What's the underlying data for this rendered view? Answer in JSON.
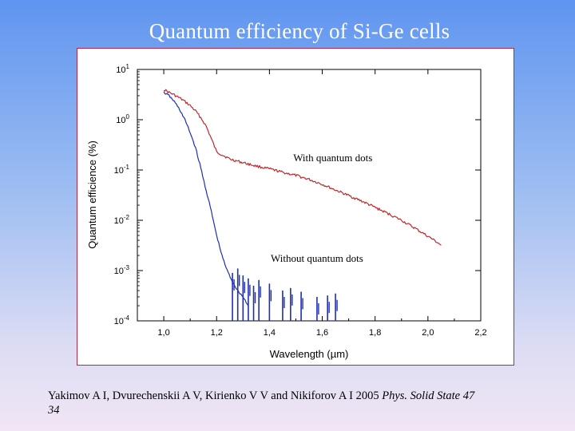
{
  "slide": {
    "title": "Quantum efficiency of Si-Ge cells",
    "citation_main": "Yakimov A I, Dvurechenskii A V, Kirienko V V and Nikiforov A I 2005 ",
    "citation_journal": "Phys. Solid State 47",
    "citation_page": "34"
  },
  "colors": {
    "with_dots": "#c0272d",
    "without_dots": "#1f2fb0",
    "frame_border": "#b22a44"
  },
  "chart_data": {
    "type": "line",
    "title": "",
    "xlabel": "Wavelength (µm)",
    "ylabel": "Quantum efficience (%)",
    "xlim": [
      0.9,
      2.2
    ],
    "ylim": [
      0.0001,
      10
    ],
    "yscale": "log",
    "grid": false,
    "xticks": [
      {
        "value": 1.0,
        "label": "1,0"
      },
      {
        "value": 1.2,
        "label": "1,2"
      },
      {
        "value": 1.4,
        "label": "1,4"
      },
      {
        "value": 1.6,
        "label": "1,6"
      },
      {
        "value": 1.8,
        "label": "1,8"
      },
      {
        "value": 2.0,
        "label": "2,0"
      },
      {
        "value": 2.2,
        "label": "2,2"
      }
    ],
    "yticks": [
      {
        "value": 10,
        "base": "10",
        "exp": "1"
      },
      {
        "value": 1,
        "base": "10",
        "exp": "0"
      },
      {
        "value": 0.1,
        "base": "10",
        "exp": "-1"
      },
      {
        "value": 0.01,
        "base": "10",
        "exp": "-2"
      },
      {
        "value": 0.001,
        "base": "10",
        "exp": "-3"
      },
      {
        "value": 0.0001,
        "base": "10",
        "exp": "-4"
      }
    ],
    "annotations": [
      {
        "text": "With quantum dots",
        "x": 1.64,
        "y": 0.15
      },
      {
        "text": "Without quantum dots",
        "x": 1.58,
        "y": 0.0015
      }
    ],
    "series": [
      {
        "key": "with_dots",
        "x": [
          1.0,
          1.02,
          1.04,
          1.06,
          1.08,
          1.1,
          1.12,
          1.14,
          1.16,
          1.18,
          1.2,
          1.25,
          1.3,
          1.35,
          1.4,
          1.45,
          1.5,
          1.55,
          1.6,
          1.65,
          1.7,
          1.75,
          1.8,
          1.85,
          1.9,
          1.95,
          2.0,
          2.03,
          2.05
        ],
        "y": [
          4.0,
          3.5,
          3.1,
          2.7,
          2.3,
          1.9,
          1.5,
          1.1,
          0.75,
          0.42,
          0.23,
          0.165,
          0.14,
          0.12,
          0.105,
          0.09,
          0.078,
          0.065,
          0.052,
          0.04,
          0.031,
          0.024,
          0.018,
          0.0135,
          0.01,
          0.007,
          0.0048,
          0.0038,
          0.0032
        ]
      },
      {
        "key": "without_dots",
        "x": [
          1.0,
          1.02,
          1.04,
          1.06,
          1.08,
          1.1,
          1.12,
          1.14,
          1.16,
          1.18,
          1.2,
          1.22,
          1.24,
          1.26,
          1.28,
          1.3,
          1.32
        ],
        "y": [
          3.5,
          3.0,
          2.3,
          1.6,
          1.0,
          0.55,
          0.28,
          0.11,
          0.04,
          0.015,
          0.005,
          0.002,
          0.001,
          0.0006,
          0.0004,
          0.0003,
          0.0002
        ]
      },
      {
        "key": "without_dots_noise",
        "x": [
          1.26,
          1.28,
          1.3,
          1.32,
          1.34,
          1.36,
          1.4,
          1.45,
          1.48,
          1.52,
          1.58,
          1.62,
          1.65
        ],
        "y": [
          0.0009,
          0.0011,
          0.0008,
          0.0007,
          0.0005,
          0.00065,
          0.00055,
          0.0004,
          0.00045,
          0.00038,
          0.0003,
          0.00032,
          0.00035
        ]
      }
    ]
  }
}
